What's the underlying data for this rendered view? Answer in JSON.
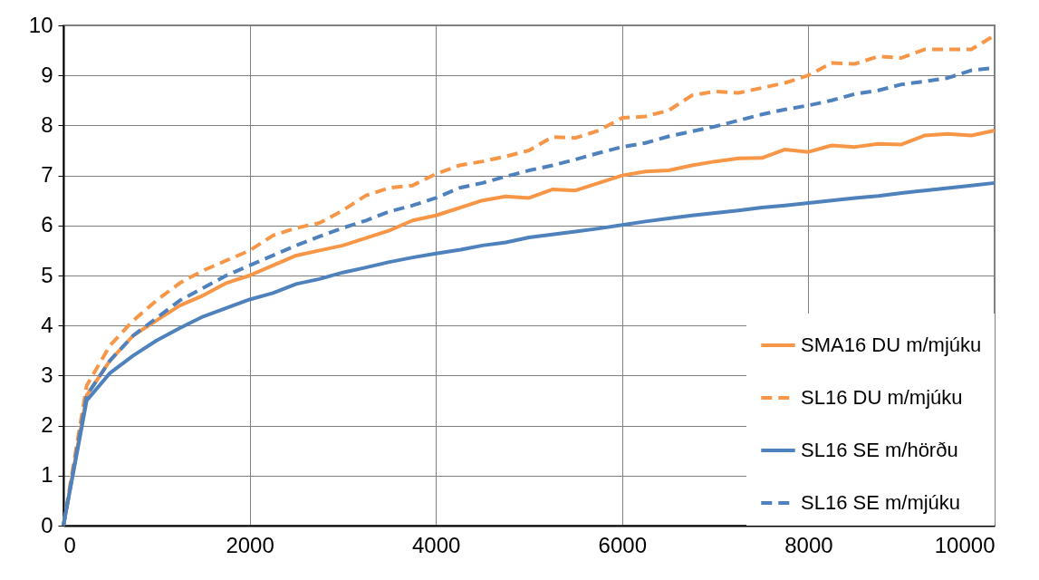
{
  "chart_data": {
    "type": "line",
    "x": [
      0,
      250,
      500,
      750,
      1000,
      1250,
      1500,
      1750,
      2000,
      2250,
      2500,
      2750,
      3000,
      3250,
      3500,
      3750,
      4000,
      4250,
      4500,
      4750,
      5000,
      5250,
      5500,
      5750,
      6000,
      6250,
      6500,
      6750,
      7000,
      7250,
      7500,
      7750,
      8000,
      8250,
      8500,
      8750,
      9000,
      9250,
      9500,
      9750,
      10000
    ],
    "series": [
      {
        "name": "SMA16 DU m/mjúku",
        "color": "#f79646",
        "line_style": "solid",
        "values": [
          0,
          2.6,
          3.3,
          3.8,
          4.1,
          4.4,
          4.6,
          4.85,
          5.0,
          5.2,
          5.4,
          5.5,
          5.6,
          5.75,
          5.9,
          6.1,
          6.2,
          6.35,
          6.5,
          6.58,
          6.55,
          6.72,
          6.7,
          6.85,
          7.0,
          7.08,
          7.1,
          7.2,
          7.28,
          7.34,
          7.35,
          7.52,
          7.47,
          7.6,
          7.57,
          7.63,
          7.62,
          7.8,
          7.83,
          7.8,
          7.9
        ]
      },
      {
        "name": "SL16 DU m/mjúku",
        "color": "#f79646",
        "line_style": "dashed",
        "values": [
          0,
          2.8,
          3.6,
          4.1,
          4.5,
          4.85,
          5.1,
          5.3,
          5.5,
          5.8,
          5.95,
          6.05,
          6.3,
          6.6,
          6.75,
          6.8,
          7.03,
          7.2,
          7.28,
          7.38,
          7.5,
          7.77,
          7.75,
          7.9,
          8.15,
          8.18,
          8.3,
          8.6,
          8.68,
          8.65,
          8.75,
          8.85,
          9.0,
          9.25,
          9.23,
          9.38,
          9.35,
          9.52,
          9.52,
          9.52,
          9.8
        ]
      },
      {
        "name": "SL16 SE m/hörðu",
        "color": "#4f81bd",
        "line_style": "solid",
        "values": [
          0,
          2.5,
          3.05,
          3.4,
          3.7,
          3.95,
          4.18,
          4.35,
          4.52,
          4.65,
          4.83,
          4.93,
          5.06,
          5.16,
          5.27,
          5.36,
          5.44,
          5.51,
          5.6,
          5.66,
          5.76,
          5.82,
          5.88,
          5.94,
          6.01,
          6.08,
          6.14,
          6.2,
          6.25,
          6.3,
          6.36,
          6.4,
          6.45,
          6.5,
          6.55,
          6.59,
          6.65,
          6.7,
          6.75,
          6.8,
          6.85
        ]
      },
      {
        "name": "SL16 SE m/mjúku",
        "color": "#4f81bd",
        "line_style": "dashed",
        "values": [
          0,
          2.6,
          3.3,
          3.8,
          4.15,
          4.5,
          4.75,
          5.0,
          5.2,
          5.4,
          5.6,
          5.78,
          5.95,
          6.1,
          6.28,
          6.4,
          6.55,
          6.75,
          6.85,
          6.98,
          7.1,
          7.2,
          7.32,
          7.45,
          7.57,
          7.65,
          7.78,
          7.88,
          7.98,
          8.1,
          8.22,
          8.32,
          8.4,
          8.5,
          8.63,
          8.7,
          8.82,
          8.88,
          8.95,
          9.1,
          9.15
        ]
      }
    ],
    "xlim": [
      0,
      10000
    ],
    "xticks": [
      0,
      2000,
      4000,
      6000,
      8000,
      10000
    ],
    "ylim": [
      0,
      10
    ],
    "yticks": [
      0,
      1,
      2,
      3,
      4,
      5,
      6,
      7,
      8,
      9,
      10
    ],
    "grid": true,
    "legend": "bottom right",
    "marker": "none"
  }
}
